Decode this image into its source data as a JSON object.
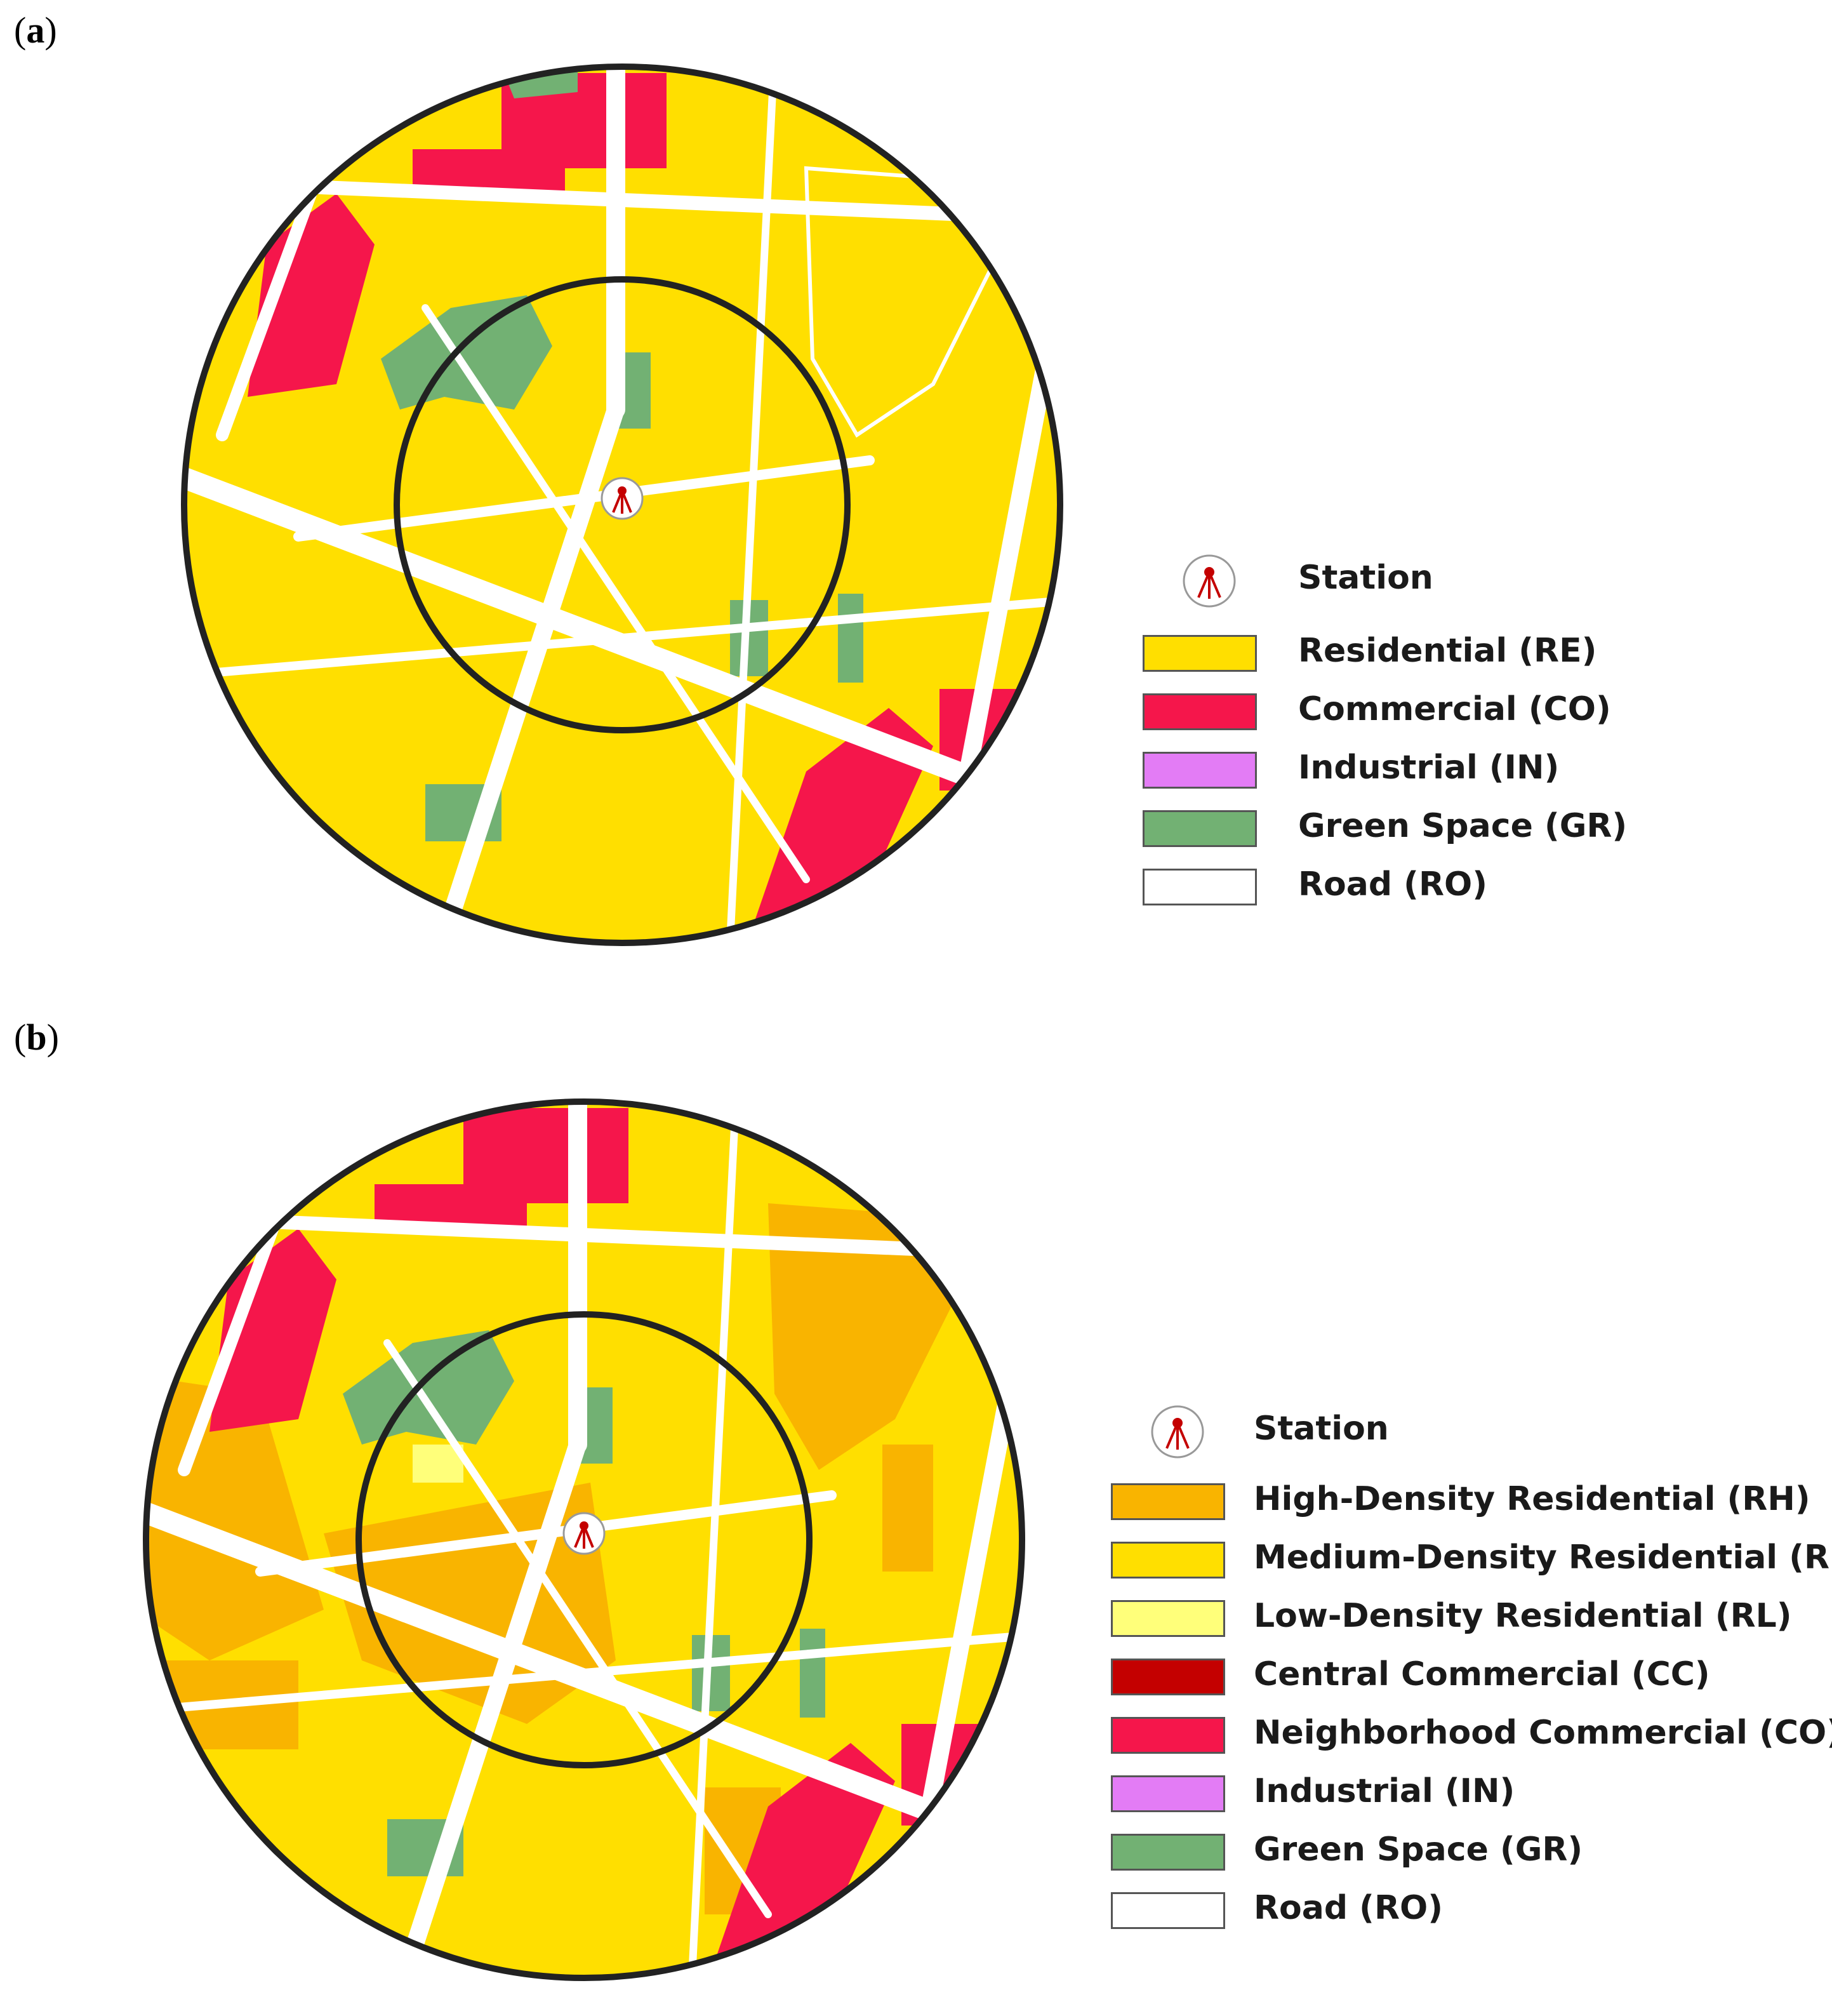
{
  "panels": {
    "a": {
      "label_letter": "a"
    },
    "b": {
      "label_letter": "b"
    }
  },
  "legend_a": {
    "station": "Station",
    "items": [
      {
        "label": "Residential (RE)",
        "color": "#FFDF00"
      },
      {
        "label": "Commercial (CO)",
        "color": "#F5164B"
      },
      {
        "label": "Industrial (IN)",
        "color": "#E37CF5"
      },
      {
        "label": "Green Space (GR)",
        "color": "#72B173"
      },
      {
        "label": "Road (RO)",
        "color": "#FFFFFF"
      }
    ]
  },
  "legend_b": {
    "station": "Station",
    "items": [
      {
        "label": "High-Density Residential (RH)",
        "color": "#F9B400"
      },
      {
        "label": "Medium-Density Residential (RM)",
        "color": "#FFDF00"
      },
      {
        "label": "Low-Density Residential (RL)",
        "color": "#FFFF7A"
      },
      {
        "label": "Central Commercial (CC)",
        "color": "#C40000"
      },
      {
        "label": "Neighborhood Commercial (CO)",
        "color": "#F5164B"
      },
      {
        "label": "Industrial (IN)",
        "color": "#E37CF5"
      },
      {
        "label": "Green Space (GR)",
        "color": "#72B173"
      },
      {
        "label": "Road (RO)",
        "color": "#FFFFFF"
      }
    ]
  }
}
